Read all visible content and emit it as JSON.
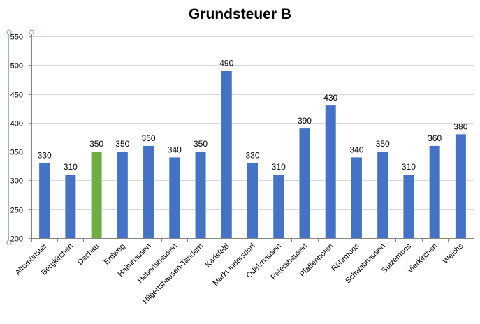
{
  "chart_data": {
    "type": "bar",
    "title": "Grundsteuer B",
    "xlabel": "",
    "ylabel": "",
    "ylim": [
      200,
      550
    ],
    "yticks": [
      200,
      250,
      300,
      350,
      400,
      450,
      500,
      550
    ],
    "grid": true,
    "legend": "none",
    "categories": [
      "Altomünster",
      "Bergkirchen",
      "Dachau",
      "Erdweg",
      "Haimhausen",
      "Hebertshausen",
      "Hilgertshausen-Tandern",
      "Karlsfeld",
      "Markt Indersdorf",
      "Odelzhausen",
      "Petershausen",
      "Pfaffenhofen",
      "Röhrmoos",
      "Schwabhausen",
      "Sulzemoos",
      "Vierkirchen",
      "Weichs"
    ],
    "values": [
      330,
      310,
      350,
      350,
      360,
      340,
      350,
      490,
      330,
      310,
      390,
      430,
      340,
      350,
      310,
      360,
      380
    ],
    "highlight_category": "Dachau",
    "colors": {
      "bar": "#4472C4",
      "highlight": "#70AD47",
      "grid": "#D9D9D9",
      "axis": "#868686"
    }
  }
}
